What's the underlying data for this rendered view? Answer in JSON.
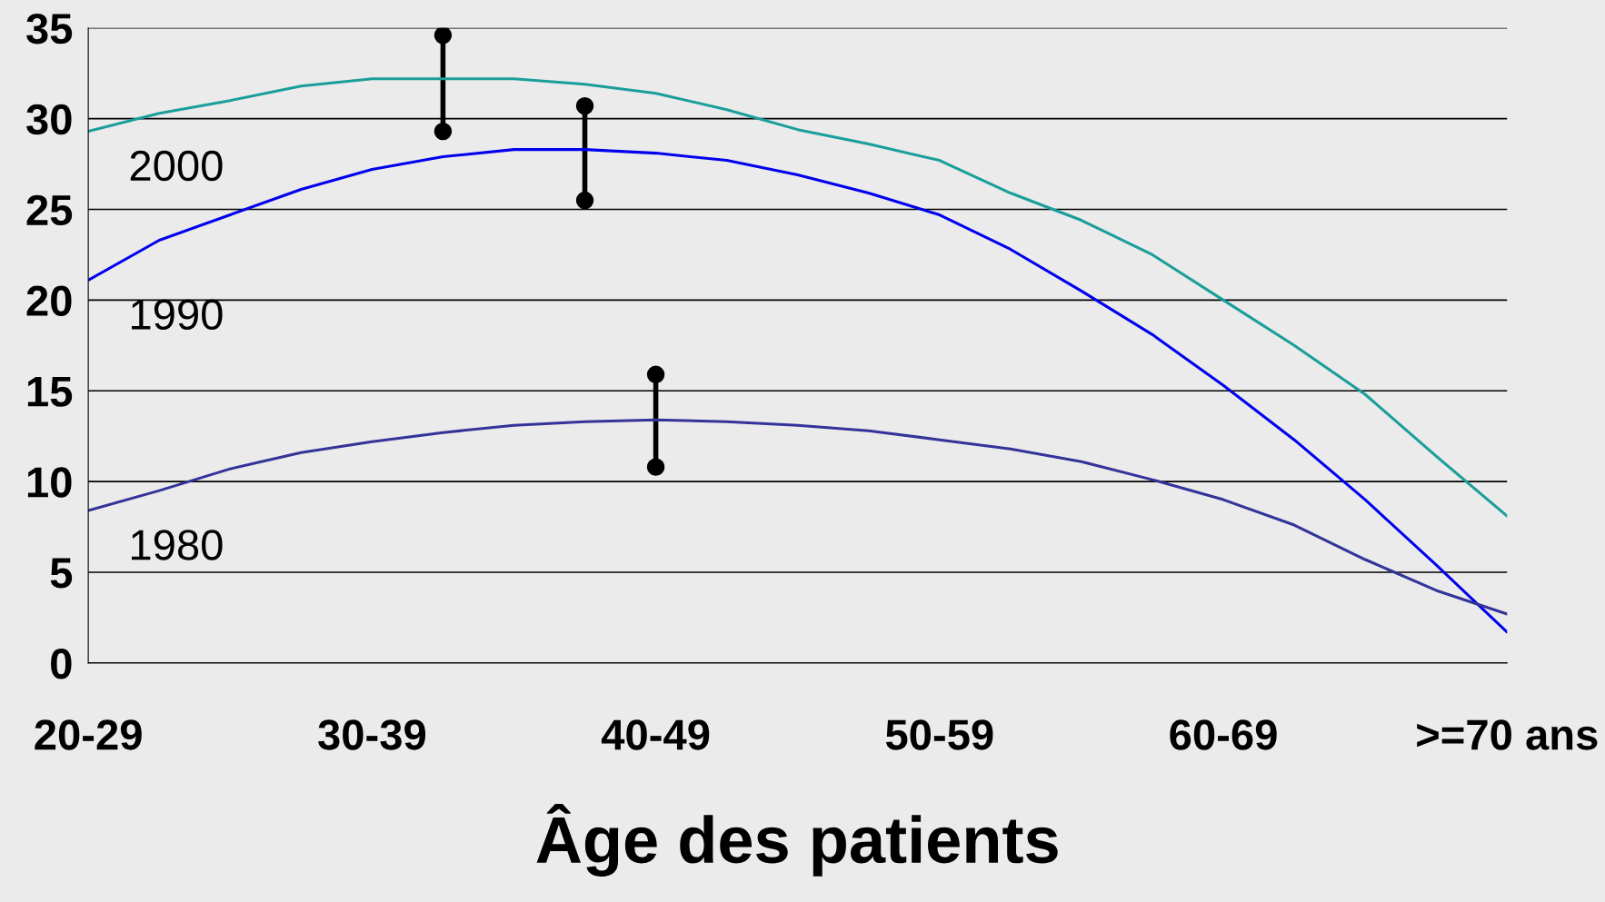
{
  "chart_data": {
    "type": "line",
    "xlabel": "Âge des patients",
    "categories": [
      "20-29",
      null,
      null,
      null,
      "30-39",
      null,
      null,
      null,
      "40-49",
      null,
      null,
      null,
      "50-59",
      null,
      null,
      null,
      "60-69",
      null,
      null,
      null,
      ">=70 ans"
    ],
    "ylim": [
      0,
      35
    ],
    "yticks": [
      0,
      5,
      10,
      15,
      20,
      25,
      30,
      35
    ],
    "grid": "y",
    "legend": false,
    "marker": "none",
    "line_style": "solid",
    "series": [
      {
        "name": "2000",
        "color": "#1a9e9a",
        "values": [
          29.3,
          30.3,
          31.0,
          31.8,
          32.2,
          32.2,
          32.2,
          31.9,
          31.4,
          30.5,
          29.4,
          28.6,
          27.7,
          25.9,
          24.4,
          22.5,
          20.0,
          17.5,
          14.8,
          11.4,
          8.1
        ]
      },
      {
        "name": "1990",
        "color": "#0000ee",
        "values": [
          21.1,
          23.3,
          24.7,
          26.1,
          27.2,
          27.9,
          28.3,
          28.3,
          28.1,
          27.7,
          26.9,
          25.9,
          24.7,
          22.8,
          20.5,
          18.1,
          15.3,
          12.3,
          9.0,
          5.4,
          1.7
        ]
      },
      {
        "name": "1980",
        "color": "#33339a",
        "values": [
          8.4,
          9.5,
          10.7,
          11.6,
          12.2,
          12.7,
          13.1,
          13.3,
          13.4,
          13.3,
          13.1,
          12.8,
          12.3,
          11.8,
          11.1,
          10.1,
          9.0,
          7.6,
          5.7,
          4.0,
          2.7
        ]
      },
      {
        "type": "scatter",
        "color": "#000000",
        "values": [
          null,
          null,
          null,
          null,
          null,
          34.6,
          null,
          30.7,
          15.9,
          null,
          null,
          null,
          null,
          null,
          null,
          null,
          null,
          null,
          null,
          null,
          null
        ],
        "marker": "circle"
      },
      {
        "type": "scatter",
        "color": "#000000",
        "values": [
          null,
          null,
          null,
          null,
          null,
          29.3,
          null,
          25.5,
          10.8,
          null,
          null,
          null,
          null,
          null,
          null,
          null,
          null,
          null,
          null,
          null,
          null
        ],
        "marker": "circle"
      }
    ]
  }
}
